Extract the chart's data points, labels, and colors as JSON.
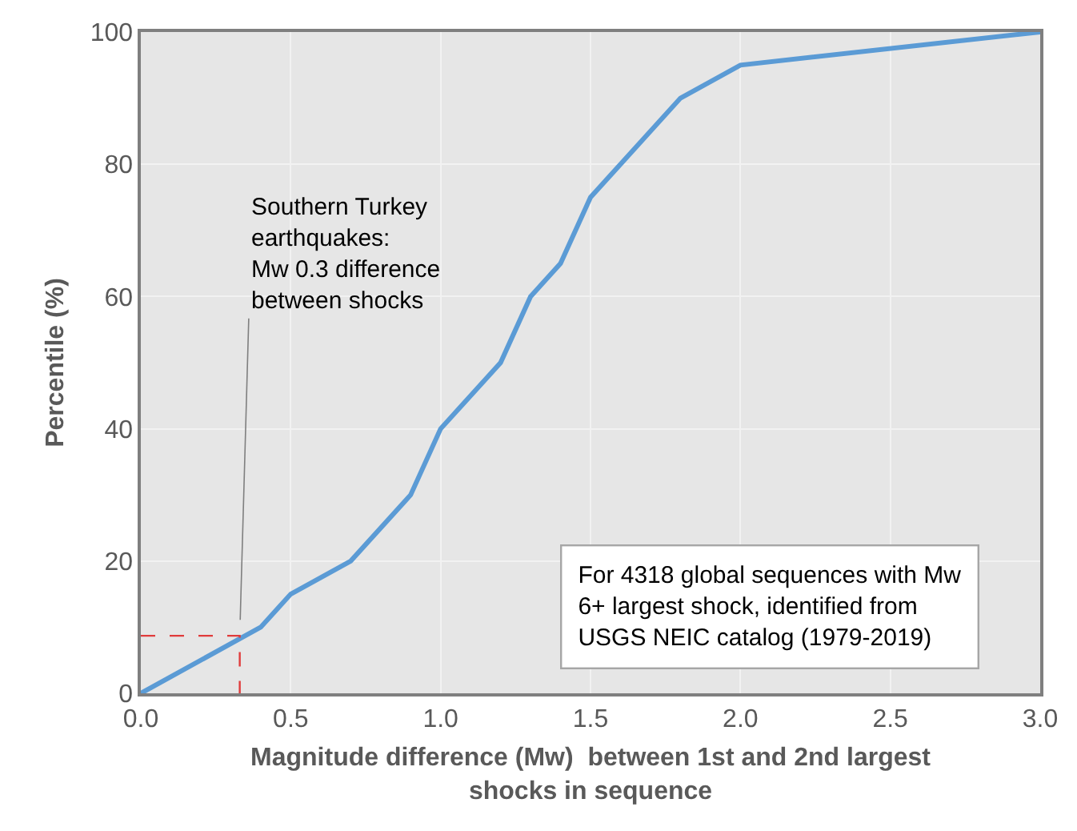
{
  "chart_data": {
    "type": "line",
    "xlabel": "Magnitude difference (Mw)  between 1st and 2nd largest\nshocks in sequence",
    "ylabel": "Percentile (%)",
    "series": [
      {
        "color": "#5b9bd5",
        "x": [
          0,
          0.4,
          0.5,
          0.7,
          0.9,
          1.0,
          1.2,
          1.3,
          1.4,
          1.5,
          1.8,
          2.0,
          3.0
        ],
        "values": [
          0,
          10,
          15,
          20,
          30,
          40,
          50,
          60,
          65,
          75,
          90,
          95,
          100
        ]
      },
      {
        "color": "#e03c3c",
        "line_style": "dashed",
        "x": [
          0,
          0.33,
          0.33
        ],
        "values": [
          8.7,
          8.7,
          0
        ]
      }
    ],
    "xlim": [
      0,
      3
    ],
    "xticks": [
      {
        "value": 0,
        "label": "0.0"
      },
      {
        "value": 0.5,
        "label": "0.5"
      },
      {
        "value": 1,
        "label": "1.0"
      },
      {
        "value": 1.5,
        "label": "1.5"
      },
      {
        "value": 2,
        "label": "2.0"
      },
      {
        "value": 2.5,
        "label": "2.5"
      },
      {
        "value": 3,
        "label": "3.0"
      }
    ],
    "ylim": [
      0,
      100
    ],
    "yticks": [
      0,
      20,
      40,
      60,
      80,
      100
    ],
    "grid": true,
    "marker": "none",
    "line_style": "solid",
    "annotations": [
      {
        "text": "Southern Turkey\nearthquakes:\nMw 0.3 difference\nbetween shocks",
        "x": 0.33,
        "y": 8.7
      },
      "For 4318 global sequences with Mw\n6+ largest shock, identified from\nUSGS NEIC catalog (1979-2019)"
    ]
  }
}
